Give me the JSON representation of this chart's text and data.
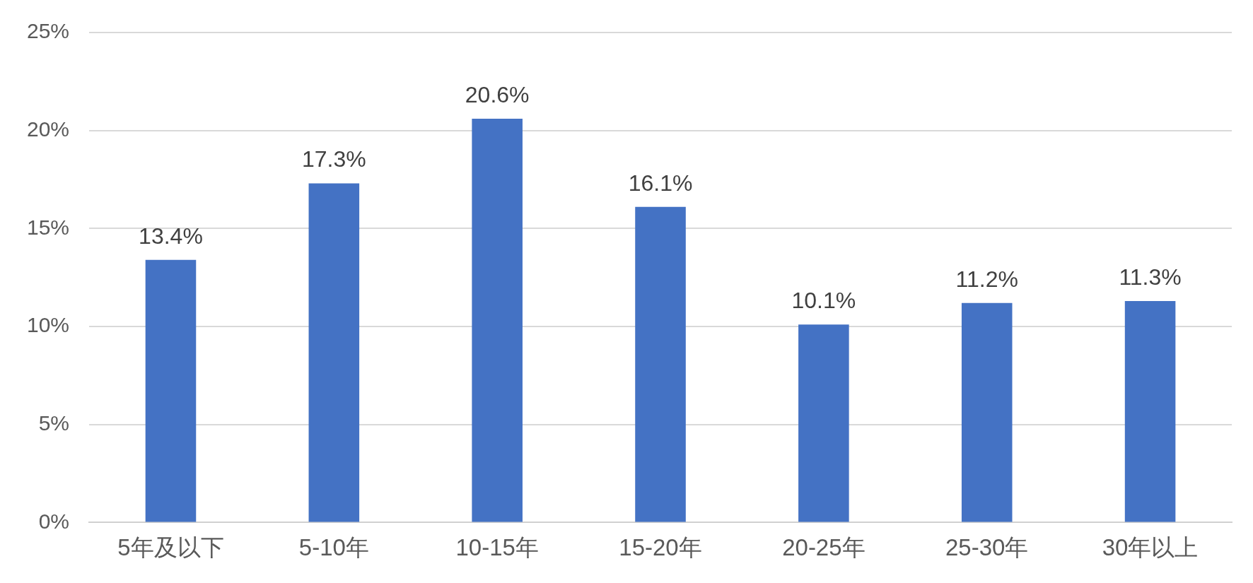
{
  "chart_data": {
    "type": "bar",
    "categories": [
      "5年及以下",
      "5-10年",
      "10-15年",
      "15-20年",
      "20-25年",
      "25-30年",
      "30年以上"
    ],
    "values": [
      13.4,
      17.3,
      20.6,
      16.1,
      10.1,
      11.2,
      11.3
    ],
    "value_labels": [
      "13.4%",
      "17.3%",
      "20.6%",
      "16.1%",
      "10.1%",
      "11.2%",
      "11.3%"
    ],
    "color": "#4472c4",
    "ylim": [
      0,
      25
    ],
    "yticks": [
      {
        "value": 0,
        "label": "0%"
      },
      {
        "value": 5,
        "label": "5%"
      },
      {
        "value": 10,
        "label": "10%"
      },
      {
        "value": 15,
        "label": "15%"
      },
      {
        "value": 20,
        "label": "20%"
      },
      {
        "value": 25,
        "label": "25%"
      }
    ],
    "grid": "y",
    "legend": false
  }
}
